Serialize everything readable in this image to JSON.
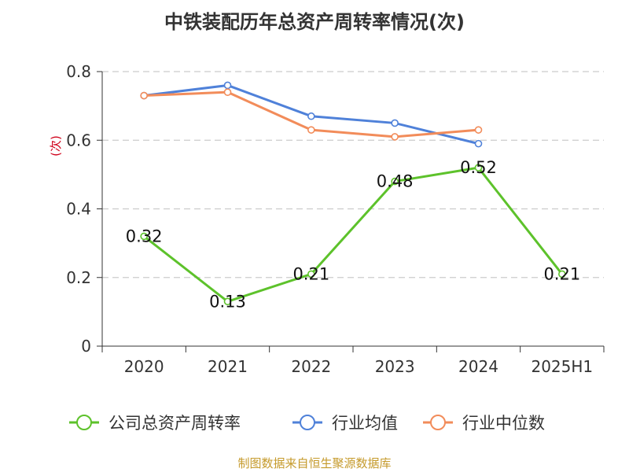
{
  "chart_data": {
    "type": "line",
    "title": "中铁装配历年总资产周转率情况(次)",
    "ylabel": "(次)",
    "xlabel": "",
    "ylim": [
      0,
      0.8
    ],
    "yticks": [
      "0",
      "0.2",
      "0.4",
      "0.6",
      "0.8"
    ],
    "categories": [
      "2020",
      "2021",
      "2022",
      "2023",
      "2024",
      "2025H1"
    ],
    "grid": true,
    "legend_position": "bottom",
    "series": [
      {
        "name": "公司总资产周转率",
        "color": "#5dc22b",
        "labeled": true,
        "values": [
          0.32,
          0.13,
          0.21,
          0.48,
          0.52,
          0.21
        ],
        "labels": [
          "0.32",
          "0.13",
          "0.21",
          "0.48",
          "0.52",
          "0.21"
        ]
      },
      {
        "name": "行业均值",
        "color": "#4f81d9",
        "labeled": false,
        "values": [
          0.73,
          0.76,
          0.67,
          0.65,
          0.59,
          null
        ]
      },
      {
        "name": "行业中位数",
        "color": "#f28c5a",
        "labeled": false,
        "values": [
          0.73,
          0.74,
          0.63,
          0.61,
          0.63,
          null
        ]
      }
    ]
  },
  "source": "制图数据来自恒生聚源数据库"
}
